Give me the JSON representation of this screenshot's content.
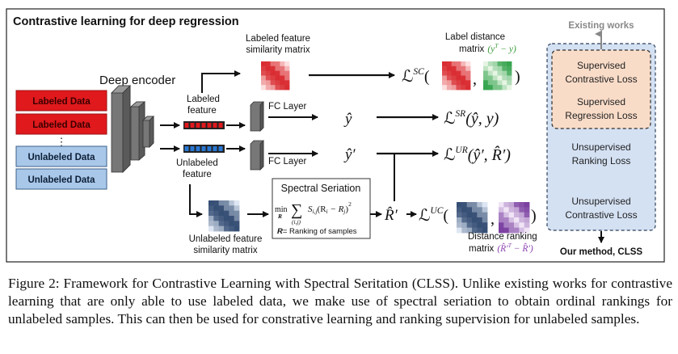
{
  "title": "Contrastive learning for deep regression",
  "deep_encoder": "Deep encoder",
  "inputs": {
    "labeled": [
      "Labeled Data",
      "Labeled Data"
    ],
    "dots": "⋮",
    "unlabeled": [
      "Unlabeled Data",
      "Unlabeled Data"
    ]
  },
  "labeled_feature": [
    "Labeled",
    "feature"
  ],
  "unlabeled_feature": [
    "Unlabeled",
    "feature"
  ],
  "fc_layer": "FC Layer",
  "labeled_sim_matrix": [
    "Labeled feature",
    "similarity matrix"
  ],
  "unlabeled_sim_matrix": [
    "Unlabeled feature",
    "similarity matrix"
  ],
  "label_distance": {
    "line1": "Label distance",
    "line2": "matrix",
    "formula": "(y",
    "formula_sup": "T",
    "formula_end": " − y)"
  },
  "distance_ranking": {
    "line1": "Distance ranking",
    "line2": "matrix",
    "formula": "(R̂′",
    "formula_sup": "T",
    "formula_end": " − R̂′)"
  },
  "spectral": {
    "title": "Spectral Seriation",
    "min": "min",
    "min_sub": "R",
    "sum_sub": "(i,j)",
    "sum_sym": "∑",
    "term": "S",
    "term_sub": "i,j",
    "term_paren": "(R",
    "term_i": "i",
    "term_minus": " − R",
    "term_j": "j",
    "term_close": ")",
    "term_sq": "2",
    "note_bold": "R",
    "note": "= Ranking of samples"
  },
  "outputs": {
    "y_hat": "ŷ",
    "y_hat_prime": "ŷ′",
    "r_hat_prime": "R̂′"
  },
  "losses": {
    "sc": {
      "L": "ℒ",
      "sup": "SC",
      "open": "(",
      "close": ")",
      "comma": ","
    },
    "sr": {
      "L": "ℒ",
      "sup": "SR",
      "args": "(ŷ, y)"
    },
    "ur": {
      "L": "ℒ",
      "sup": "UR",
      "args": "(ŷ′, R̂′)"
    },
    "uc": {
      "L": "ℒ",
      "sup": "UC",
      "open": "(",
      "close": ")",
      "comma": ","
    }
  },
  "panel": {
    "existing_works": "Existing works",
    "supervised_contrastive": [
      "Supervised",
      "Contrastive Loss"
    ],
    "supervised_regression": [
      "Supervised",
      "Regression Loss"
    ],
    "unsupervised_ranking": [
      "Unsupervised",
      "Ranking Loss"
    ],
    "unsupervised_contrastive": [
      "Unsupervised",
      "Contrastive Loss"
    ],
    "our_method": "Our method, CLSS"
  },
  "colors": {
    "labeled_red": "#e0191c",
    "unlabeled_blue": "#a9c8e9",
    "panel_blue": "#d4e1f3",
    "panel_orange": "#f9dcc8",
    "formula_green": "#3a9a3a",
    "formula_purple": "#8a3fb0"
  },
  "caption": "Figure 2: Framework for Contrastive Learning with Spectral Seritation (CLSS). Unlike existing works for contrastive learning that are only able to use labeled data, we make use of spectral seriation to obtain ordinal rankings for unlabeled samples. This can then be used for constrative learning and ranking supervision for unlabeled samples."
}
